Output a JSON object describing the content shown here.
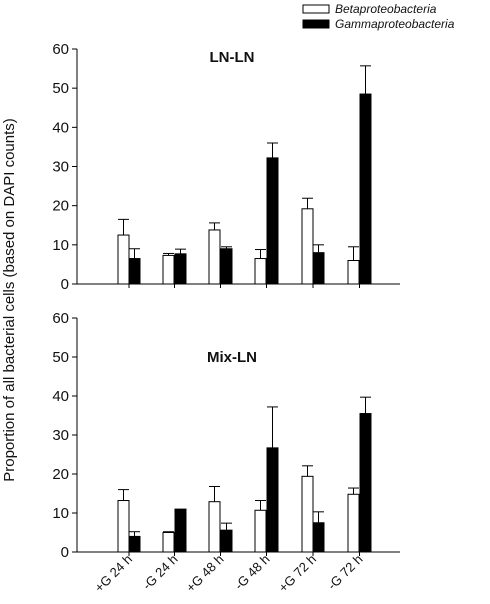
{
  "chart_data": [
    {
      "type": "bar",
      "title": "LN-LN",
      "ylabel": "Proportion of all bacterial cells (based on DAPI counts)",
      "ylim": [
        0,
        60
      ],
      "yticks": [
        "0",
        "10",
        "20",
        "30",
        "40",
        "50",
        "60"
      ],
      "categories": [
        "+G 24 h",
        "-G 24 h",
        "+G 48 h",
        "-G 48 h",
        "+G 72 h",
        "-G 72 h"
      ],
      "series": [
        {
          "name": "Betaproteobacteria",
          "color": "#ffffff",
          "values": [
            12.5,
            7.3,
            13.8,
            6.5,
            19.2,
            6.0
          ],
          "errors": [
            4.0,
            0.5,
            1.8,
            2.3,
            2.7,
            3.5
          ]
        },
        {
          "name": "Gammaproteobacteria",
          "color": "#000000",
          "values": [
            6.5,
            7.7,
            9.0,
            32.2,
            8.0,
            48.5
          ],
          "errors": [
            2.5,
            1.2,
            0.5,
            3.8,
            2.0,
            7.2
          ]
        }
      ],
      "legend_position": "top-right"
    },
    {
      "type": "bar",
      "title": "Mix-LN",
      "ylim": [
        0,
        60
      ],
      "yticks": [
        "0",
        "10",
        "20",
        "30",
        "40",
        "50",
        "60"
      ],
      "categories": [
        "+G 24 h",
        "-G 24 h",
        "+G 48 h",
        "-G 48 h",
        "+G 72 h",
        "-G 72 h"
      ],
      "series": [
        {
          "name": "Betaproteobacteria",
          "color": "#ffffff",
          "values": [
            13.2,
            5.0,
            12.9,
            10.7,
            19.4,
            14.8
          ],
          "errors": [
            2.8,
            0.2,
            3.9,
            2.5,
            2.7,
            1.6
          ]
        },
        {
          "name": "Gammaproteobacteria",
          "color": "#000000",
          "values": [
            4.0,
            11.0,
            5.6,
            26.7,
            7.5,
            35.5
          ],
          "errors": [
            1.2,
            0.0,
            1.8,
            10.5,
            2.8,
            4.2
          ]
        }
      ]
    }
  ],
  "xtick_labels": [
    "+G 24 h",
    "-G 24 h",
    "+G 48 h",
    "-G 48 h",
    "+G 72 h",
    "-G 72 h"
  ]
}
